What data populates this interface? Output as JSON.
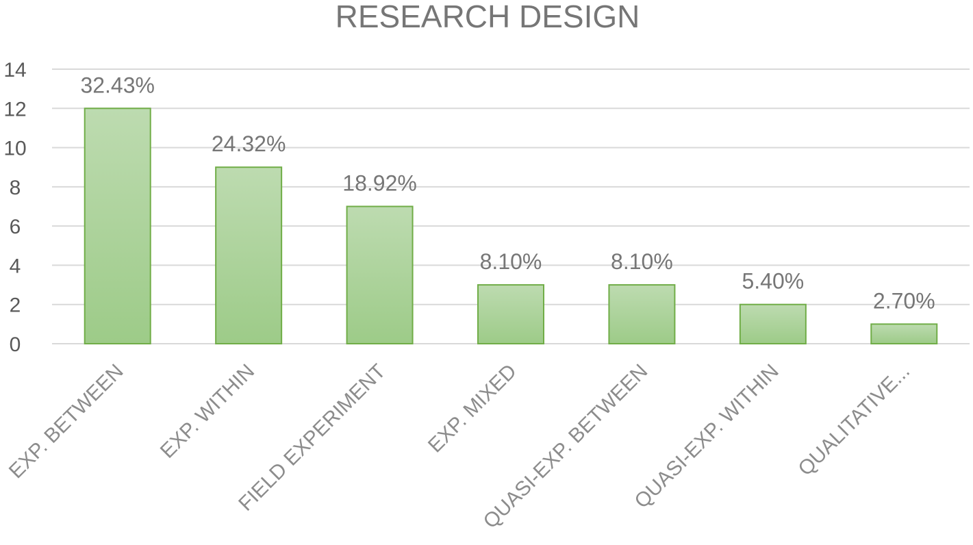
{
  "chart_data": {
    "type": "bar",
    "title": "RESEARCH DESIGN",
    "xlabel": "",
    "ylabel": "",
    "categories": [
      "EXP. BETWEEN",
      "EXP. WITHIN",
      "FIELD EXPERIMENT",
      "EXP. MIXED",
      "QUASI-EXP. BETWEEN",
      "QUASI-EXP. WITHIN",
      "QUALITATIVE..."
    ],
    "values": [
      12,
      9,
      7,
      3,
      3,
      2,
      1
    ],
    "data_labels": [
      "32.43%",
      "24.32%",
      "18.92%",
      "8.10%",
      "8.10%",
      "5.40%",
      "2.70%"
    ],
    "ylim": [
      0,
      14
    ],
    "yticks": [
      0,
      2,
      4,
      6,
      8,
      10,
      12,
      14
    ],
    "grid": true,
    "legend": "none",
    "colors": {
      "bar_fill_top": "#bddbb0",
      "bar_fill_bottom": "#9dcb88",
      "bar_stroke": "#70ad47",
      "gridline": "#d9d9d9"
    }
  }
}
